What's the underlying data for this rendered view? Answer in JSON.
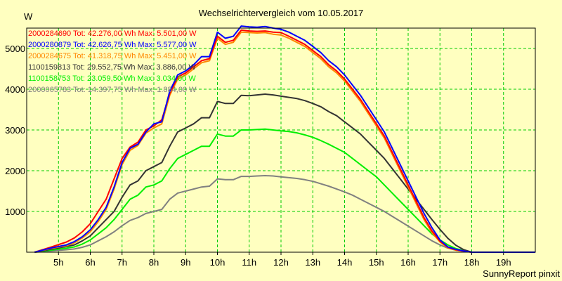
{
  "chart_data": {
    "type": "line",
    "title": "Wechselrichtervergleich vom 10.05.2017",
    "ylabel": "W",
    "xlabel": "",
    "footer": "SunnyReport pinxit",
    "xlim": [
      4.0,
      20.0
    ],
    "ylim": [
      0,
      5500
    ],
    "x_ticks": [
      5,
      6,
      7,
      8,
      9,
      10,
      11,
      12,
      13,
      14,
      15,
      16,
      17,
      18,
      19
    ],
    "x_tick_labels": [
      "5h",
      "6h",
      "7h",
      "8h",
      "9h",
      "10h",
      "11h",
      "12h",
      "13h",
      "14h",
      "15h",
      "16h",
      "17h",
      "18h",
      "19h"
    ],
    "y_ticks": [
      1000,
      2000,
      3000,
      4000,
      5000
    ],
    "y_tick_labels": [
      "1000",
      "2000",
      "3000",
      "4000",
      "5000"
    ],
    "grid": true,
    "legend_position": "top-left",
    "colors": {
      "background": "#ffffc0",
      "grid": "#00cc00",
      "axis": "#000000"
    },
    "series": [
      {
        "name": "2000284690",
        "legend_text": "2000284690 Tot: 42.276,00 Wh Max: 5.501,00 W",
        "color": "#ff0000",
        "x": [
          4.25,
          4.75,
          5.25,
          5.5,
          5.75,
          6.0,
          6.25,
          6.5,
          6.75,
          7.0,
          7.25,
          7.5,
          7.75,
          8.0,
          8.25,
          8.5,
          8.75,
          9.0,
          9.25,
          9.5,
          9.75,
          10.0,
          10.25,
          10.5,
          10.75,
          11.0,
          11.25,
          11.5,
          11.75,
          12.0,
          12.25,
          12.5,
          12.75,
          13.0,
          13.25,
          13.5,
          13.75,
          14.0,
          14.25,
          14.5,
          14.75,
          15.0,
          15.25,
          15.5,
          15.75,
          16.0,
          16.25,
          16.5,
          16.75,
          17.0,
          17.25,
          17.5,
          17.75,
          18.0,
          18.5,
          19.0,
          19.5,
          20.0
        ],
        "y": [
          0,
          120,
          250,
          350,
          500,
          700,
          1000,
          1300,
          1800,
          2300,
          2580,
          2700,
          3000,
          3100,
          3250,
          3900,
          4300,
          4400,
          4550,
          4700,
          4750,
          5300,
          5150,
          5200,
          5450,
          5430,
          5420,
          5430,
          5400,
          5390,
          5300,
          5200,
          5100,
          4950,
          4800,
          4600,
          4450,
          4250,
          4000,
          3750,
          3450,
          3150,
          2850,
          2450,
          2050,
          1650,
          1250,
          850,
          520,
          270,
          120,
          60,
          30,
          0,
          0,
          0,
          0,
          0
        ]
      },
      {
        "name": "2000280879",
        "legend_text": "2000280879 Tot: 42.626,75 Wh Max: 5.577,00 W",
        "color": "#0000ff",
        "x": [
          4.25,
          4.75,
          5.25,
          5.5,
          5.75,
          6.0,
          6.25,
          6.5,
          6.75,
          7.0,
          7.25,
          7.5,
          7.75,
          8.0,
          8.25,
          8.5,
          8.75,
          9.0,
          9.25,
          9.5,
          9.75,
          10.0,
          10.25,
          10.5,
          10.75,
          11.0,
          11.25,
          11.5,
          11.75,
          12.0,
          12.25,
          12.5,
          12.75,
          13.0,
          13.25,
          13.5,
          13.75,
          14.0,
          14.25,
          14.5,
          14.75,
          15.0,
          15.25,
          15.5,
          15.75,
          16.0,
          16.25,
          16.5,
          16.75,
          17.0,
          17.25,
          17.5,
          17.75,
          18.0,
          18.5,
          19.0,
          19.5,
          20.0
        ],
        "y": [
          0,
          100,
          180,
          260,
          380,
          550,
          800,
          1100,
          1600,
          2200,
          2550,
          2650,
          2950,
          3150,
          3200,
          3950,
          4350,
          4450,
          4600,
          4800,
          4800,
          5400,
          5250,
          5300,
          5550,
          5530,
          5520,
          5540,
          5500,
          5470,
          5400,
          5300,
          5200,
          5050,
          4900,
          4700,
          4550,
          4350,
          4100,
          3850,
          3550,
          3250,
          2950,
          2550,
          2150,
          1750,
          1350,
          950,
          600,
          300,
          130,
          70,
          30,
          0,
          0,
          0,
          0,
          0
        ]
      },
      {
        "name": "2000284675",
        "legend_text": "2000284675 Tot: 41.318,75 Wh Max: 5.451,00 W",
        "color": "#ff8800",
        "x": [
          4.25,
          4.75,
          5.25,
          5.5,
          5.75,
          6.0,
          6.25,
          6.5,
          6.75,
          7.0,
          7.25,
          7.5,
          7.75,
          8.0,
          8.25,
          8.5,
          8.75,
          9.0,
          9.25,
          9.5,
          9.75,
          10.0,
          10.25,
          10.5,
          10.75,
          11.0,
          11.25,
          11.5,
          11.75,
          12.0,
          12.25,
          12.5,
          12.75,
          13.0,
          13.25,
          13.5,
          13.75,
          14.0,
          14.25,
          14.5,
          14.75,
          15.0,
          15.25,
          15.5,
          15.75,
          16.0,
          16.25,
          16.5,
          16.75,
          17.0,
          17.25,
          17.5,
          17.75,
          18.0,
          18.5,
          19.0,
          19.5,
          20.0
        ],
        "y": [
          0,
          90,
          160,
          230,
          350,
          500,
          750,
          1050,
          1550,
          2150,
          2500,
          2620,
          2920,
          3050,
          3150,
          3850,
          4250,
          4350,
          4500,
          4650,
          4700,
          5250,
          5100,
          5150,
          5400,
          5390,
          5380,
          5390,
          5350,
          5330,
          5250,
          5150,
          5050,
          4900,
          4750,
          4550,
          4400,
          4200,
          3950,
          3700,
          3400,
          3100,
          2800,
          2400,
          2000,
          1600,
          1200,
          800,
          480,
          250,
          110,
          50,
          20,
          0,
          0,
          0,
          0,
          0
        ]
      },
      {
        "name": "1100159813",
        "legend_text": "1100159813 Tot: 29.552,75 Wh Max: 3.886,00 W",
        "color": "#333333",
        "x": [
          4.25,
          4.75,
          5.25,
          5.5,
          5.75,
          6.0,
          6.25,
          6.5,
          6.75,
          7.0,
          7.25,
          7.5,
          7.75,
          8.0,
          8.25,
          8.5,
          8.75,
          9.0,
          9.25,
          9.5,
          9.75,
          10.0,
          10.25,
          10.5,
          10.75,
          11.0,
          11.25,
          11.5,
          11.75,
          12.0,
          12.25,
          12.5,
          12.75,
          13.0,
          13.25,
          13.5,
          13.75,
          14.0,
          14.25,
          14.5,
          14.75,
          15.0,
          15.25,
          15.5,
          15.75,
          16.0,
          16.25,
          16.5,
          16.75,
          17.0,
          17.25,
          17.5,
          17.75,
          18.0,
          18.5,
          19.0,
          19.5,
          20.0
        ],
        "y": [
          0,
          70,
          140,
          180,
          280,
          400,
          600,
          800,
          1000,
          1350,
          1650,
          1750,
          2000,
          2100,
          2200,
          2600,
          2950,
          3050,
          3150,
          3300,
          3300,
          3700,
          3650,
          3650,
          3850,
          3840,
          3860,
          3880,
          3860,
          3830,
          3800,
          3770,
          3720,
          3650,
          3570,
          3450,
          3350,
          3200,
          3050,
          2900,
          2700,
          2500,
          2300,
          2050,
          1800,
          1550,
          1300,
          1050,
          800,
          560,
          340,
          170,
          60,
          0,
          0,
          0,
          0,
          0
        ]
      },
      {
        "name": "1100158753",
        "legend_text": "1100158753 Tot: 23.059,50 Wh Max: 3.034,00 W",
        "color": "#00ee00",
        "x": [
          4.25,
          4.75,
          5.25,
          5.5,
          5.75,
          6.0,
          6.25,
          6.5,
          6.75,
          7.0,
          7.25,
          7.5,
          7.75,
          8.0,
          8.25,
          8.5,
          8.75,
          9.0,
          9.25,
          9.5,
          9.75,
          10.0,
          10.25,
          10.5,
          10.75,
          11.0,
          11.25,
          11.5,
          11.75,
          12.0,
          12.25,
          12.5,
          12.75,
          13.0,
          13.25,
          13.5,
          13.75,
          14.0,
          14.25,
          14.5,
          14.75,
          15.0,
          15.25,
          15.5,
          15.75,
          16.0,
          16.25,
          16.5,
          16.75,
          17.0,
          17.25,
          17.5,
          17.75,
          18.0,
          18.5,
          19.0,
          19.5,
          20.0
        ],
        "y": [
          0,
          50,
          100,
          130,
          200,
          300,
          450,
          600,
          800,
          1050,
          1300,
          1400,
          1600,
          1650,
          1750,
          2050,
          2300,
          2400,
          2500,
          2600,
          2600,
          2900,
          2850,
          2850,
          3000,
          3000,
          3010,
          3020,
          3000,
          2980,
          2960,
          2930,
          2880,
          2820,
          2740,
          2650,
          2550,
          2450,
          2300,
          2150,
          2000,
          1850,
          1650,
          1450,
          1250,
          1050,
          850,
          650,
          450,
          300,
          180,
          90,
          40,
          0,
          0,
          0,
          0,
          0
        ]
      },
      {
        "name": "2000065783",
        "legend_text": "2000065783 Tot: 14.397,75 Wh Max: 1.884,00 W",
        "color": "#808080",
        "x": [
          4.25,
          4.75,
          5.25,
          5.5,
          5.75,
          6.0,
          6.25,
          6.5,
          6.75,
          7.0,
          7.25,
          7.5,
          7.75,
          8.0,
          8.25,
          8.5,
          8.75,
          9.0,
          9.25,
          9.5,
          9.75,
          10.0,
          10.25,
          10.5,
          10.75,
          11.0,
          11.25,
          11.5,
          11.75,
          12.0,
          12.25,
          12.5,
          12.75,
          13.0,
          13.25,
          13.5,
          13.75,
          14.0,
          14.25,
          14.5,
          14.75,
          15.0,
          15.25,
          15.5,
          15.75,
          16.0,
          16.25,
          16.5,
          16.75,
          17.0,
          17.25,
          17.5,
          17.75,
          18.0,
          18.5,
          19.0,
          19.5,
          20.0
        ],
        "y": [
          0,
          30,
          60,
          80,
          120,
          180,
          280,
          380,
          500,
          650,
          780,
          850,
          950,
          1000,
          1050,
          1300,
          1450,
          1500,
          1550,
          1600,
          1620,
          1800,
          1780,
          1780,
          1860,
          1860,
          1870,
          1880,
          1870,
          1850,
          1830,
          1810,
          1780,
          1740,
          1680,
          1620,
          1550,
          1480,
          1400,
          1300,
          1200,
          1100,
          1000,
          880,
          760,
          640,
          520,
          400,
          280,
          180,
          100,
          50,
          20,
          0,
          0,
          0,
          0,
          0
        ]
      }
    ]
  }
}
